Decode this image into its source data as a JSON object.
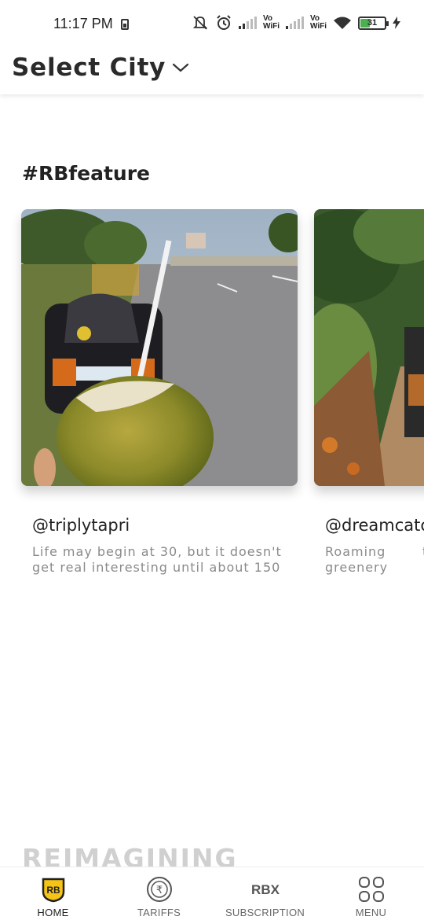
{
  "status_bar": {
    "time": "11:17 PM",
    "vo_label": "Vo",
    "wifi_label": "WiFi",
    "battery_level": "31"
  },
  "header": {
    "city_label": "Select City"
  },
  "feature_section": {
    "title": "#RBfeature",
    "cards": [
      {
        "handle": "@triplytapri",
        "caption": "Life may begin at 30, but it doesn't get real interesting until about 150"
      },
      {
        "handle": "@dreamcatc",
        "caption": "Roaming thr greenery"
      }
    ]
  },
  "next_section": {
    "title": "REIMAGINING"
  },
  "bottom_nav": {
    "items": [
      {
        "label": "HOME",
        "icon": "rb-logo-icon",
        "active": true
      },
      {
        "label": "TARIFFS",
        "icon": "rupee-icon",
        "active": false
      },
      {
        "label": "SUBSCRIPTION",
        "icon": "rbx-icon",
        "active": false
      },
      {
        "label": "MENU",
        "icon": "grid-menu-icon",
        "active": false
      }
    ]
  },
  "colors": {
    "accent_yellow": "#f6c416",
    "text_dark": "#222222",
    "text_muted": "#8a8a8a"
  }
}
